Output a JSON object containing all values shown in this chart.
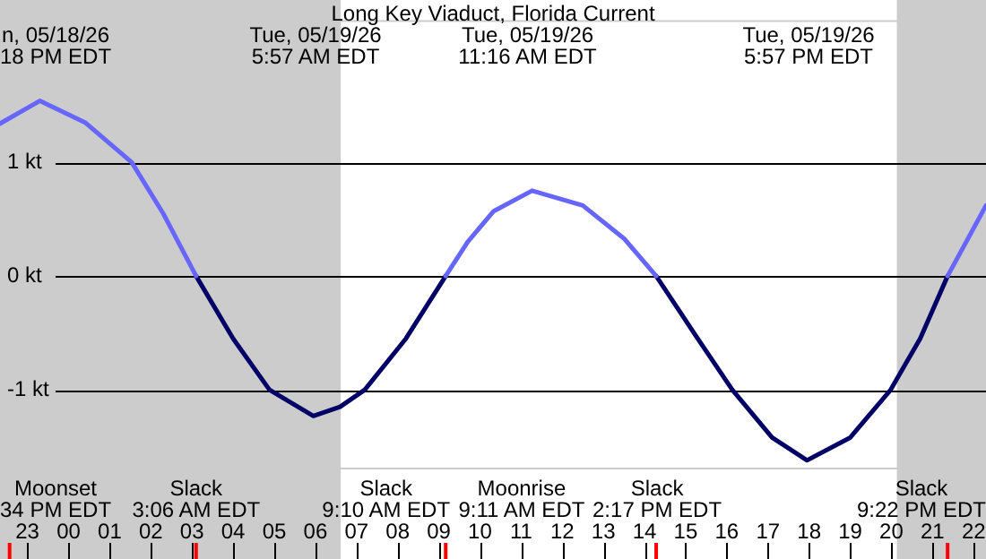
{
  "chart_data": {
    "type": "line",
    "title": "Long Key Viaduct, Florida Current",
    "x": [
      "--05-18T22:20",
      "--05-18T23:18",
      "--05-19T00:24",
      "--05-19T01:32",
      "--05-19T02:18",
      "--05-19T03:06",
      "--05-19T04:00",
      "--05-19T04:53",
      "--05-19T05:57",
      "--05-19T06:36",
      "--05-19T07:12",
      "--05-19T08:12",
      "--05-19T09:10",
      "--05-19T09:42",
      "--05-19T10:20",
      "--05-19T11:16",
      "--05-19T12:30",
      "--05-19T13:30",
      "--05-19T14:17",
      "--05-19T15:12",
      "--05-19T16:08",
      "--05-19T17:06",
      "--05-19T17:57",
      "--05-19T19:00",
      "--05-19T19:59",
      "--05-19T20:42",
      "--05-19T21:22",
      "--05-19T22:18"
    ],
    "series": [
      {
        "color": "#6666ff",
        "values": [
          1.34,
          1.54,
          1.35,
          1.0,
          0.55,
          0,
          null,
          null,
          null,
          null,
          null,
          null,
          0,
          0.3,
          0.57,
          0.75,
          0.62,
          0.33,
          0,
          null,
          null,
          null,
          null,
          null,
          null,
          null,
          0,
          0.62
        ]
      },
      {
        "color": "#000066",
        "values": [
          null,
          null,
          null,
          null,
          null,
          0,
          -0.55,
          -1.0,
          -1.23,
          -1.15,
          -1.0,
          -0.55,
          0,
          null,
          null,
          null,
          null,
          null,
          0,
          -0.5,
          -1.0,
          -1.42,
          -1.62,
          -1.42,
          -1.0,
          -0.55,
          0,
          null
        ]
      }
    ],
    "xlim": [
      "--05-18T22:20",
      "--05-19T22:18"
    ],
    "xticks": [
      {
        "value": "--05-18T23:00",
        "label": "23"
      },
      {
        "value": "--05-19T00:00",
        "label": "00"
      },
      {
        "value": "--05-19T01:00",
        "label": "01"
      },
      {
        "value": "--05-19T02:00",
        "label": "02"
      },
      {
        "value": "--05-19T03:00",
        "label": "03"
      },
      {
        "value": "--05-19T04:00",
        "label": "04"
      },
      {
        "value": "--05-19T05:00",
        "label": "05"
      },
      {
        "value": "--05-19T06:00",
        "label": "06"
      },
      {
        "value": "--05-19T07:00",
        "label": "07"
      },
      {
        "value": "--05-19T08:00",
        "label": "08"
      },
      {
        "value": "--05-19T09:00",
        "label": "09"
      },
      {
        "value": "--05-19T10:00",
        "label": "10"
      },
      {
        "value": "--05-19T11:00",
        "label": "11"
      },
      {
        "value": "--05-19T12:00",
        "label": "12"
      },
      {
        "value": "--05-19T13:00",
        "label": "13"
      },
      {
        "value": "--05-19T14:00",
        "label": "14"
      },
      {
        "value": "--05-19T15:00",
        "label": "15"
      },
      {
        "value": "--05-19T16:00",
        "label": "16"
      },
      {
        "value": "--05-19T17:00",
        "label": "17"
      },
      {
        "value": "--05-19T18:00",
        "label": "18"
      },
      {
        "value": "--05-19T19:00",
        "label": "19"
      },
      {
        "value": "--05-19T20:00",
        "label": "20"
      },
      {
        "value": "--05-19T21:00",
        "label": "21"
      },
      {
        "value": "--05-19T22:00",
        "label": "22"
      }
    ],
    "ylim": [
      -1.7,
      2.25
    ],
    "yticks": [
      {
        "value": -1,
        "label": "-1 kt"
      },
      {
        "value": 0,
        "label": "0 kt"
      },
      {
        "value": 1,
        "label": "1 kt"
      }
    ],
    "grid": "y",
    "legend": false,
    "marker": "none",
    "line_style": "solid",
    "bands": [
      {
        "axis": "x",
        "from": "--05-18T22:20",
        "to": "--05-19T06:37",
        "color": "#cccccc"
      },
      {
        "axis": "x",
        "from": "--05-19T20:08",
        "to": "--05-19T22:18",
        "color": "#cccccc"
      }
    ],
    "ref_lines": [
      {
        "axis": "x",
        "value": "--05-18T22:34",
        "label": "Moonset\n34 PM EDT",
        "color": "#ff0000"
      },
      {
        "axis": "x",
        "value": "--05-19T03:06",
        "label": "Slack\n3:06 AM EDT",
        "color": "#ff0000"
      },
      {
        "axis": "x",
        "value": "--05-19T09:10",
        "label": "Slack\n9:10 AM EDT",
        "color": "#ff0000"
      },
      {
        "axis": "x",
        "value": "--05-19T14:17",
        "label": "Slack\n2:17 PM EDT",
        "color": "#ff0000"
      },
      {
        "axis": "x",
        "value": "--05-19T21:22",
        "label": "Slack\n9:22 PM EDT",
        "color": "#ff0000"
      }
    ],
    "annotations": [
      "n, 05/18/26\n18 PM EDT",
      "Tue, 05/19/26\n5:57 AM EDT",
      "Tue, 05/19/26\n11:16 AM EDT",
      "Tue, 05/19/26\n5:57 PM EDT",
      "Moonrise\n9:11 AM EDT"
    ]
  }
}
